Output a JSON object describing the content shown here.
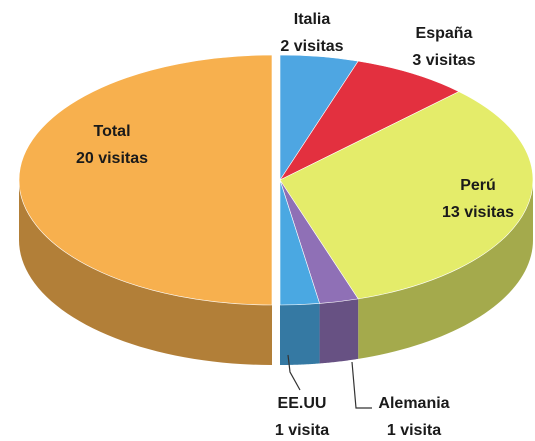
{
  "chart_data": {
    "type": "pie",
    "categories": [
      "Total",
      "Italia",
      "España",
      "Perú",
      "Alemania",
      "EE.UU"
    ],
    "values": [
      20,
      2,
      3,
      13,
      1,
      1
    ],
    "value_labels": [
      "20 visitas",
      "2 visitas",
      "3 visitas",
      "13 visitas",
      "1 visita",
      "1 visita"
    ],
    "colors": [
      "#f7b04e",
      "#4ea6e2",
      "#e3303f",
      "#e4ec6a",
      "#8f70b6",
      "#4aa8e2"
    ]
  }
}
